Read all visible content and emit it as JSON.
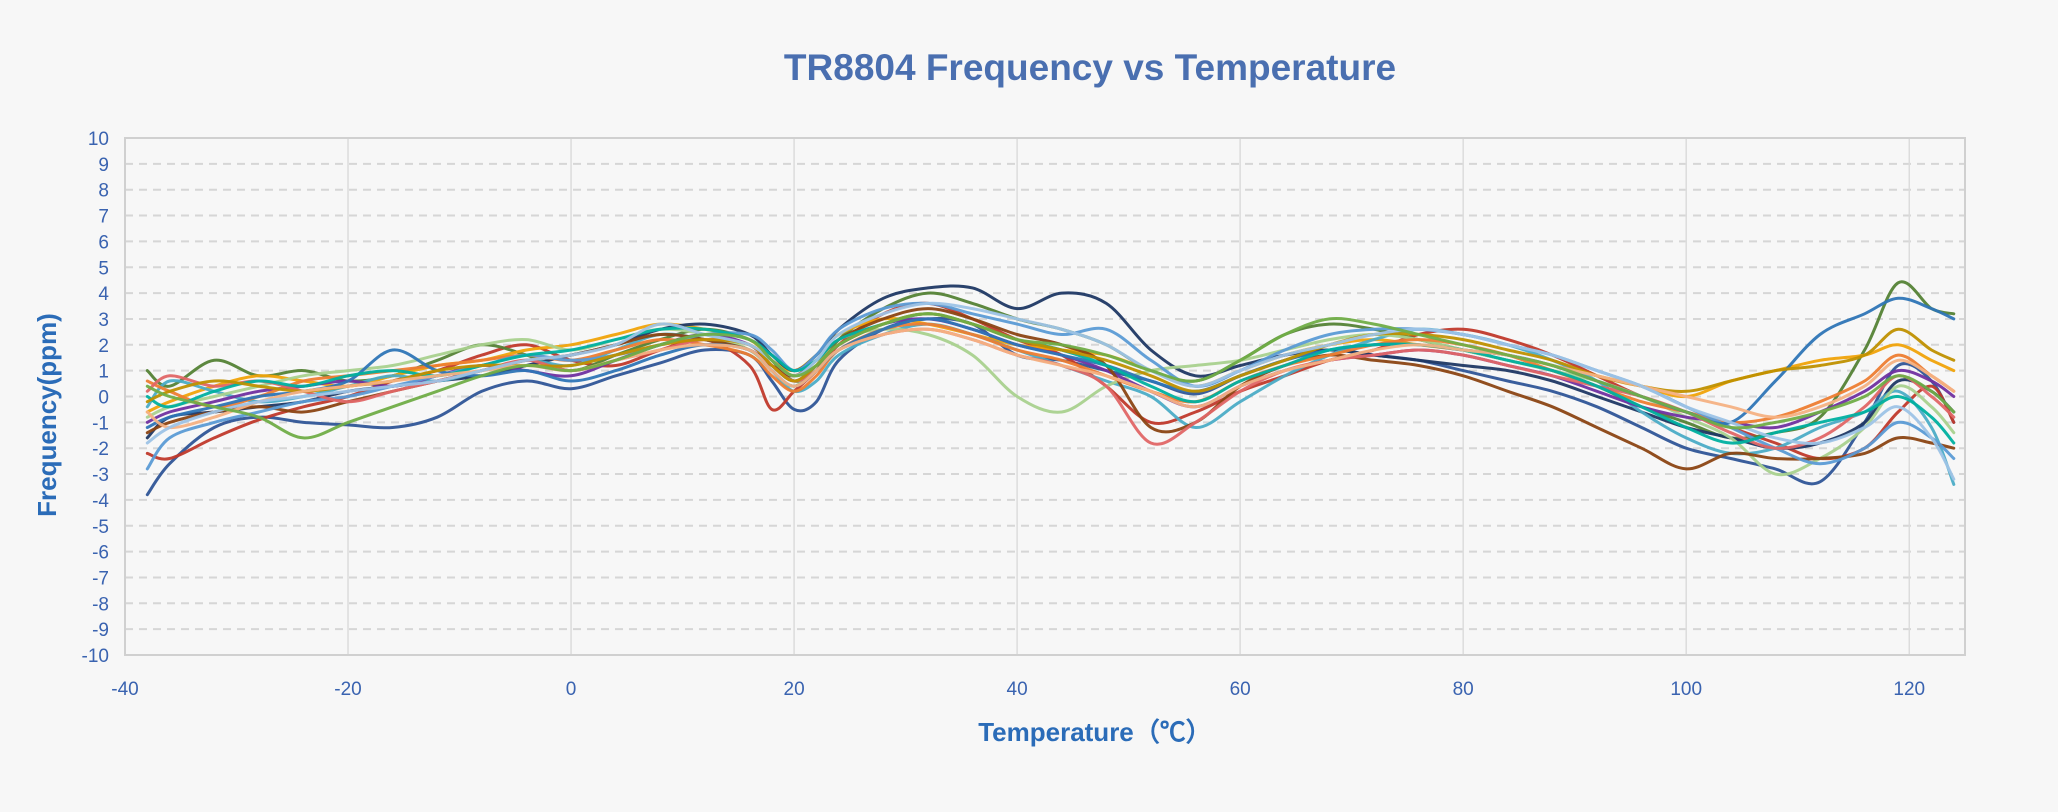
{
  "chart_data": {
    "type": "line",
    "title": "TR8804 Frequency vs Temperature",
    "xlabel": "Temperature（℃）",
    "ylabel": "Frequency(ppm)",
    "xlim": [
      -40,
      125
    ],
    "ylim": [
      -10,
      10
    ],
    "x_ticks": [
      -40,
      -20,
      0,
      20,
      40,
      60,
      80,
      100,
      120
    ],
    "y_ticks": [
      -10,
      -9,
      -8,
      -7,
      -6,
      -5,
      -4,
      -3,
      -2,
      -1,
      0,
      1,
      2,
      3,
      4,
      5,
      6,
      7,
      8,
      9,
      10
    ],
    "grid": {
      "horizontal": "dashed",
      "vertical": "solid"
    },
    "legend": "none",
    "x": [
      -38,
      -36,
      -32,
      -28,
      -24,
      -20,
      -16,
      -12,
      -8,
      -4,
      0,
      4,
      8,
      12,
      16,
      18,
      20,
      22,
      24,
      28,
      32,
      36,
      40,
      44,
      48,
      52,
      56,
      60,
      64,
      68,
      72,
      76,
      80,
      84,
      88,
      92,
      96,
      100,
      104,
      108,
      112,
      116,
      119,
      122,
      124
    ],
    "series": [
      {
        "color": "#2f5597",
        "values": [
          -3.8,
          -2.6,
          -1.2,
          -0.8,
          -1.0,
          -1.1,
          -1.2,
          -0.8,
          0.2,
          0.6,
          0.3,
          0.8,
          1.3,
          1.8,
          1.6,
          0.6,
          -0.5,
          -0.2,
          1.4,
          2.6,
          3.0,
          2.8,
          1.6,
          1.4,
          1.0,
          0.6,
          0.1,
          0.8,
          1.4,
          1.8,
          1.6,
          1.4,
          1.0,
          0.6,
          0.2,
          -0.4,
          -1.2,
          -2.0,
          -2.4,
          -2.8,
          -3.3,
          -1.0,
          1.2,
          0.6,
          -1.0
        ]
      },
      {
        "color": "#c0392b",
        "values": [
          -2.2,
          -2.4,
          -1.6,
          -0.9,
          -0.4,
          0.0,
          0.6,
          1.0,
          1.6,
          2.0,
          1.4,
          1.2,
          1.8,
          2.2,
          1.2,
          -0.5,
          0.2,
          1.0,
          2.0,
          3.2,
          3.6,
          3.0,
          2.2,
          1.6,
          0.4,
          -1.0,
          -0.6,
          0.2,
          0.8,
          1.4,
          1.8,
          2.4,
          2.6,
          2.2,
          1.6,
          0.8,
          0.0,
          -0.6,
          -1.2,
          -1.8,
          -2.4,
          -2.0,
          -0.6,
          0.4,
          -1.0
        ]
      },
      {
        "color": "#548235",
        "values": [
          1.0,
          0.4,
          1.4,
          0.8,
          1.0,
          0.6,
          0.8,
          1.4,
          2.0,
          1.6,
          1.0,
          1.6,
          2.2,
          2.6,
          2.2,
          1.4,
          0.6,
          1.0,
          2.2,
          3.4,
          4.0,
          3.6,
          3.0,
          2.6,
          2.0,
          1.0,
          0.6,
          1.4,
          2.4,
          2.8,
          2.6,
          2.2,
          1.8,
          1.4,
          1.0,
          0.4,
          -0.4,
          -1.0,
          -1.6,
          -1.4,
          -0.8,
          1.8,
          4.4,
          3.4,
          3.2
        ]
      },
      {
        "color": "#f0a30a",
        "values": [
          -0.6,
          -0.2,
          0.4,
          0.8,
          0.6,
          0.4,
          0.8,
          1.2,
          1.4,
          1.8,
          2.0,
          2.4,
          2.8,
          2.6,
          2.2,
          1.4,
          1.0,
          1.6,
          2.4,
          3.0,
          2.8,
          2.4,
          2.0,
          1.8,
          1.6,
          1.0,
          0.4,
          1.0,
          1.6,
          2.0,
          2.2,
          2.0,
          1.8,
          1.6,
          1.2,
          0.8,
          0.4,
          0.0,
          0.6,
          1.0,
          1.4,
          1.6,
          2.0,
          1.4,
          1.0
        ]
      },
      {
        "color": "#1f3864",
        "values": [
          -1.6,
          -0.8,
          -0.6,
          -0.4,
          -0.2,
          0.2,
          0.4,
          0.6,
          0.8,
          1.2,
          1.6,
          2.0,
          2.6,
          2.8,
          2.4,
          1.6,
          1.0,
          1.6,
          2.6,
          3.8,
          4.2,
          4.2,
          3.4,
          4.0,
          3.6,
          1.8,
          0.8,
          1.2,
          1.6,
          1.8,
          1.6,
          1.4,
          1.2,
          1.0,
          0.6,
          0.0,
          -0.6,
          -1.2,
          -1.6,
          -2.0,
          -1.8,
          -1.0,
          0.6,
          0.2,
          -0.6
        ]
      },
      {
        "color": "#4bacc6",
        "values": [
          -0.4,
          0.6,
          0.2,
          -0.2,
          0.0,
          0.4,
          0.8,
          0.6,
          1.0,
          1.4,
          1.2,
          1.8,
          2.4,
          2.2,
          1.8,
          1.0,
          0.2,
          0.6,
          1.6,
          2.4,
          2.8,
          2.4,
          1.8,
          1.2,
          0.6,
          0.0,
          -1.2,
          -0.2,
          0.8,
          1.6,
          2.2,
          2.6,
          2.4,
          2.0,
          1.4,
          0.6,
          -0.6,
          -1.6,
          -2.2,
          -2.0,
          -1.2,
          -0.6,
          0.2,
          -1.2,
          -3.4
        ]
      },
      {
        "color": "#a9d18e",
        "values": [
          -0.8,
          -0.4,
          0.0,
          0.4,
          0.8,
          1.0,
          1.2,
          1.6,
          2.0,
          2.2,
          1.8,
          2.2,
          2.6,
          2.4,
          1.8,
          1.0,
          0.4,
          1.2,
          2.2,
          2.6,
          2.4,
          1.6,
          0.0,
          -0.6,
          0.4,
          1.0,
          1.2,
          1.4,
          1.8,
          2.2,
          2.4,
          2.2,
          1.8,
          1.4,
          1.0,
          0.6,
          0.0,
          -0.8,
          -1.6,
          -3.0,
          -2.4,
          -1.2,
          0.4,
          -0.4,
          -1.4
        ]
      },
      {
        "color": "#7030a0",
        "values": [
          -1.0,
          -0.6,
          -0.2,
          0.2,
          0.4,
          0.6,
          0.4,
          0.8,
          1.2,
          1.0,
          0.8,
          1.4,
          2.0,
          2.4,
          2.0,
          1.2,
          0.6,
          1.2,
          2.0,
          2.8,
          3.0,
          2.6,
          2.0,
          1.6,
          1.0,
          0.2,
          -0.4,
          0.4,
          1.0,
          1.4,
          1.6,
          1.8,
          1.6,
          1.2,
          0.8,
          0.2,
          -0.4,
          -0.8,
          -1.0,
          -1.2,
          -0.6,
          0.2,
          1.0,
          0.6,
          0.0
        ]
      },
      {
        "color": "#8b4513",
        "values": [
          -1.4,
          -1.0,
          -0.6,
          -0.4,
          -0.6,
          -0.2,
          0.2,
          0.6,
          1.0,
          1.4,
          1.6,
          2.0,
          2.4,
          2.2,
          1.8,
          1.2,
          0.8,
          1.4,
          2.2,
          3.0,
          3.4,
          3.0,
          2.4,
          2.0,
          1.2,
          -1.2,
          -1.0,
          0.4,
          1.2,
          1.6,
          1.4,
          1.2,
          0.8,
          0.2,
          -0.4,
          -1.2,
          -2.0,
          -2.8,
          -2.2,
          -2.4,
          -2.4,
          -2.2,
          -1.6,
          -1.8,
          -2.0
        ]
      },
      {
        "color": "#ed7d31",
        "values": [
          0.6,
          0.2,
          -0.4,
          0.0,
          0.6,
          0.8,
          1.0,
          1.2,
          1.4,
          1.6,
          1.4,
          1.8,
          2.2,
          2.0,
          1.6,
          0.8,
          0.2,
          0.8,
          1.8,
          2.6,
          2.8,
          2.4,
          1.8,
          1.4,
          0.8,
          0.2,
          -0.2,
          0.6,
          1.2,
          1.6,
          2.0,
          2.2,
          2.0,
          1.6,
          1.0,
          0.4,
          -0.2,
          -0.6,
          -1.0,
          -0.8,
          -0.2,
          0.6,
          1.6,
          0.8,
          0.2
        ]
      },
      {
        "color": "#5b9bd5",
        "values": [
          -2.8,
          -1.6,
          -1.0,
          -0.6,
          -0.2,
          0.0,
          0.4,
          0.8,
          1.2,
          1.6,
          1.4,
          1.6,
          2.0,
          2.4,
          2.4,
          1.8,
          1.0,
          1.6,
          2.6,
          3.4,
          3.6,
          3.2,
          2.8,
          2.4,
          2.6,
          1.4,
          0.4,
          1.0,
          1.8,
          2.4,
          2.6,
          2.6,
          2.4,
          2.0,
          1.6,
          1.0,
          0.4,
          -0.4,
          -1.2,
          -2.0,
          -2.6,
          -2.0,
          -1.0,
          -1.6,
          -2.4
        ]
      },
      {
        "color": "#e06666",
        "values": [
          0.2,
          0.8,
          0.4,
          0.6,
          0.2,
          -0.2,
          0.2,
          0.6,
          1.0,
          1.4,
          1.0,
          1.4,
          1.8,
          2.2,
          2.0,
          1.2,
          0.6,
          1.0,
          1.8,
          2.4,
          2.6,
          2.2,
          1.6,
          1.2,
          0.4,
          -1.8,
          -1.0,
          0.2,
          1.0,
          1.4,
          1.6,
          1.8,
          1.6,
          1.2,
          0.8,
          0.4,
          0.0,
          -0.6,
          -1.4,
          -2.0,
          -1.6,
          -0.4,
          0.8,
          0.0,
          -0.8
        ]
      },
      {
        "color": "#2e75b6",
        "values": [
          -1.2,
          -0.8,
          -0.4,
          0.0,
          0.2,
          0.6,
          1.8,
          1.0,
          0.8,
          1.0,
          0.6,
          1.0,
          1.6,
          2.0,
          1.8,
          1.0,
          0.4,
          1.0,
          1.8,
          2.6,
          3.0,
          2.6,
          2.0,
          1.6,
          1.2,
          0.6,
          0.2,
          0.8,
          1.4,
          1.8,
          2.0,
          2.0,
          1.8,
          1.6,
          1.2,
          0.6,
          0.0,
          -0.6,
          -1.0,
          0.6,
          2.4,
          3.2,
          3.8,
          3.4,
          3.0
        ]
      },
      {
        "color": "#00b0a0",
        "values": [
          0.0,
          -0.4,
          0.2,
          0.6,
          0.4,
          0.8,
          1.0,
          0.8,
          1.2,
          1.6,
          1.8,
          2.2,
          2.6,
          2.6,
          2.2,
          1.6,
          1.0,
          1.4,
          2.2,
          2.8,
          3.2,
          2.8,
          2.2,
          1.8,
          1.2,
          0.4,
          -0.2,
          0.6,
          1.2,
          1.8,
          2.0,
          2.0,
          1.8,
          1.4,
          1.0,
          0.4,
          -0.4,
          -1.2,
          -1.8,
          -1.4,
          -1.0,
          -0.6,
          0.0,
          -0.8,
          -1.8
        ]
      },
      {
        "color": "#bf9000",
        "values": [
          -0.2,
          0.2,
          0.6,
          0.4,
          0.2,
          0.4,
          0.6,
          1.0,
          1.2,
          1.2,
          1.2,
          1.6,
          2.0,
          2.2,
          2.0,
          1.2,
          0.6,
          1.2,
          2.0,
          2.8,
          3.2,
          2.8,
          2.2,
          1.8,
          1.4,
          0.8,
          0.2,
          0.8,
          1.4,
          2.0,
          2.4,
          2.4,
          2.2,
          1.8,
          1.4,
          0.8,
          0.4,
          0.2,
          0.6,
          1.0,
          1.2,
          1.6,
          2.6,
          1.8,
          1.4
        ]
      },
      {
        "color": "#f4b183",
        "values": [
          -0.6,
          -1.2,
          -0.8,
          -0.2,
          0.2,
          0.4,
          0.6,
          0.8,
          1.0,
          1.2,
          1.0,
          1.4,
          1.8,
          2.0,
          1.8,
          1.0,
          0.4,
          1.0,
          1.8,
          2.4,
          2.6,
          2.2,
          1.6,
          1.2,
          0.8,
          0.2,
          -0.4,
          0.4,
          1.0,
          1.4,
          1.8,
          2.0,
          1.8,
          1.6,
          1.2,
          0.8,
          0.4,
          0.0,
          -0.4,
          -0.8,
          -0.4,
          0.4,
          1.4,
          0.8,
          0.2
        ]
      },
      {
        "color": "#9dc3e6",
        "values": [
          -1.8,
          -1.2,
          -0.6,
          -0.2,
          0.0,
          0.2,
          0.4,
          0.6,
          1.0,
          1.4,
          1.6,
          2.0,
          2.8,
          2.4,
          2.0,
          1.4,
          0.8,
          1.4,
          2.4,
          3.2,
          3.6,
          3.4,
          3.0,
          2.6,
          2.0,
          1.0,
          0.4,
          1.0,
          1.6,
          2.0,
          2.4,
          2.6,
          2.4,
          2.0,
          1.6,
          1.0,
          0.4,
          -0.4,
          -1.0,
          -1.6,
          -1.8,
          -1.2,
          -0.4,
          -1.6,
          -3.2
        ]
      },
      {
        "color": "#70ad47",
        "values": [
          0.4,
          0.0,
          -0.4,
          -0.8,
          -1.6,
          -1.0,
          -0.4,
          0.2,
          0.8,
          1.2,
          1.0,
          1.4,
          2.0,
          2.4,
          2.2,
          1.4,
          0.8,
          1.2,
          2.0,
          2.8,
          3.2,
          2.8,
          2.2,
          2.0,
          1.6,
          1.0,
          0.6,
          1.4,
          2.4,
          3.0,
          2.8,
          2.4,
          2.0,
          1.6,
          1.2,
          0.6,
          0.0,
          -0.6,
          -1.2,
          -1.0,
          -0.6,
          0.0,
          0.8,
          0.2,
          -0.6
        ]
      }
    ]
  }
}
